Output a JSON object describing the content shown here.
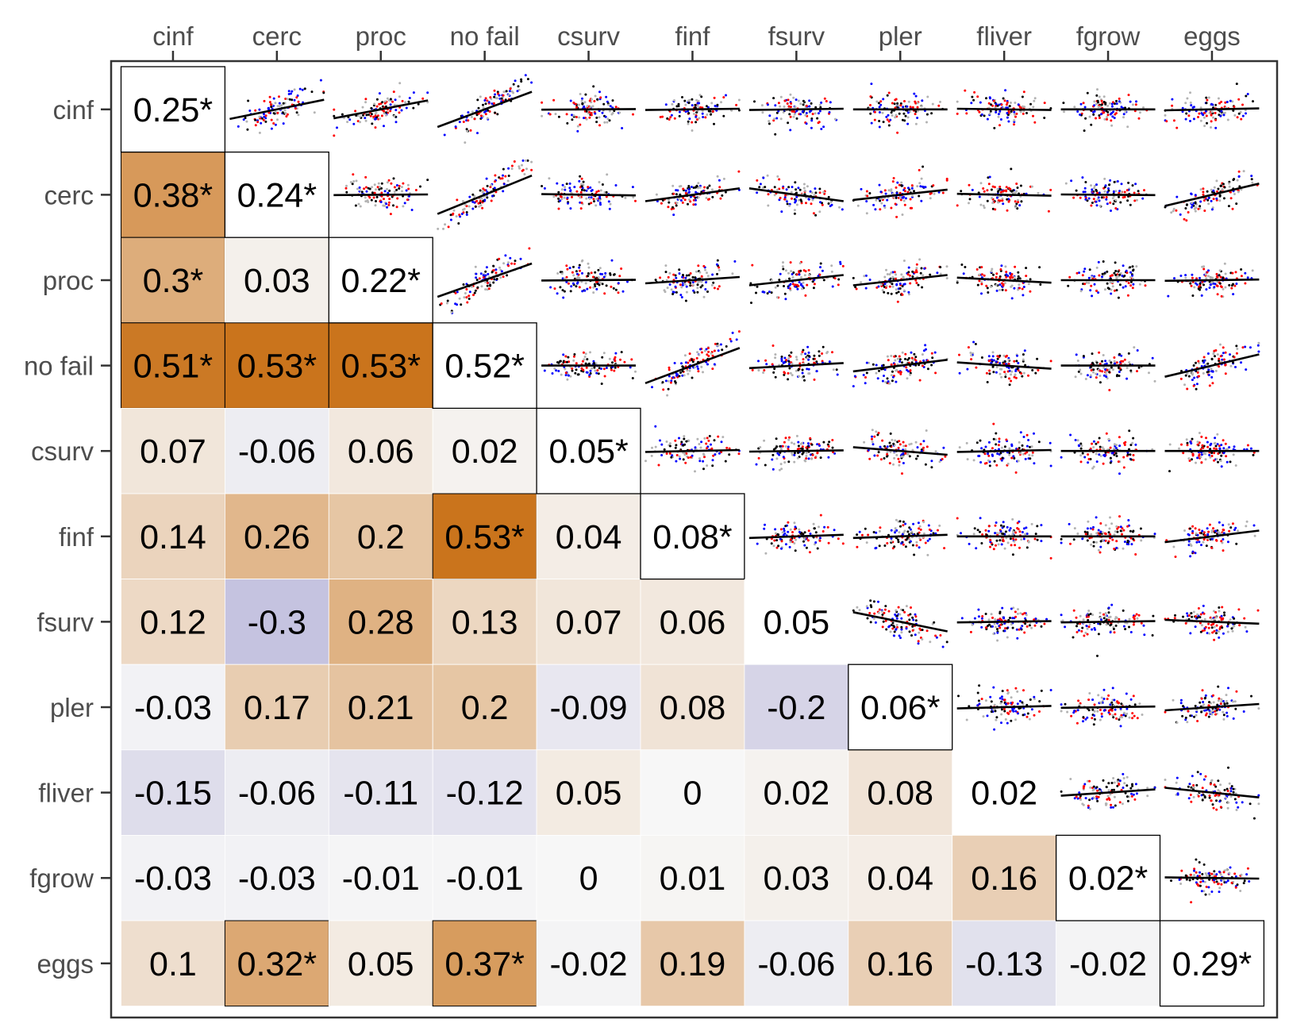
{
  "chart_data": {
    "type": "heatmap",
    "title": "",
    "variables": [
      "cinf",
      "cerc",
      "proc",
      "no fail",
      "csurv",
      "finf",
      "fsurv",
      "pler",
      "fliver",
      "fgrow",
      "eggs"
    ],
    "diagonal": [
      {
        "variable": "cinf",
        "label": "0.25*",
        "value": 0.25,
        "significant": true
      },
      {
        "variable": "cerc",
        "label": "0.24*",
        "value": 0.24,
        "significant": true
      },
      {
        "variable": "proc",
        "label": "0.22*",
        "value": 0.22,
        "significant": true
      },
      {
        "variable": "no fail",
        "label": "0.52*",
        "value": 0.52,
        "significant": true
      },
      {
        "variable": "csurv",
        "label": "0.05*",
        "value": 0.05,
        "significant": true
      },
      {
        "variable": "finf",
        "label": "0.08*",
        "value": 0.08,
        "significant": true
      },
      {
        "variable": "fsurv",
        "label": "0.05",
        "value": 0.05,
        "significant": false
      },
      {
        "variable": "pler",
        "label": "0.06*",
        "value": 0.06,
        "significant": true
      },
      {
        "variable": "fliver",
        "label": "0.02",
        "value": 0.02,
        "significant": false
      },
      {
        "variable": "fgrow",
        "label": "0.02*",
        "value": 0.02,
        "significant": true
      },
      {
        "variable": "eggs",
        "label": "0.29*",
        "value": 0.29,
        "significant": true
      }
    ],
    "lower_labels": [
      [],
      [
        "0.38*"
      ],
      [
        "0.3*",
        "0.03"
      ],
      [
        "0.51*",
        "0.53*",
        "0.53*"
      ],
      [
        "0.07",
        "-0.06",
        "0.06",
        "0.02"
      ],
      [
        "0.14",
        "0.26",
        "0.2",
        "0.53*",
        "0.04"
      ],
      [
        "0.12",
        "-0.3",
        "0.28",
        "0.13",
        "0.07",
        "0.06"
      ],
      [
        "-0.03",
        "0.17",
        "0.21",
        "0.2",
        "-0.09",
        "0.08",
        "-0.2"
      ],
      [
        "-0.15",
        "-0.06",
        "-0.11",
        "-0.12",
        "0.05",
        "0",
        "0.02",
        "0.08"
      ],
      [
        "-0.03",
        "-0.03",
        "-0.01",
        "-0.01",
        "0",
        "0.01",
        "0.03",
        "0.04",
        "0.16"
      ],
      [
        "0.1",
        "0.32*",
        "0.05",
        "0.37*",
        "-0.02",
        "0.19",
        "-0.06",
        "0.16",
        "-0.13",
        "-0.02"
      ]
    ],
    "upper_slopes": [
      [
        null,
        0.3,
        0.28,
        0.55,
        0.01,
        0.02,
        0.02,
        0.0,
        -0.02,
        0.0,
        0.03
      ],
      [
        null,
        null,
        0.01,
        0.6,
        -0.02,
        0.2,
        -0.2,
        0.16,
        -0.03,
        -0.01,
        0.35
      ],
      [
        null,
        null,
        null,
        0.52,
        0.01,
        0.1,
        0.16,
        0.16,
        -0.08,
        0.0,
        0.02
      ],
      [
        null,
        null,
        null,
        null,
        0.0,
        0.55,
        0.08,
        0.18,
        -0.1,
        0.0,
        0.35
      ],
      [
        null,
        null,
        null,
        null,
        null,
        0.03,
        0.02,
        -0.12,
        0.03,
        0.0,
        0.0
      ],
      [
        null,
        null,
        null,
        null,
        null,
        null,
        0.05,
        0.05,
        0.0,
        0.0,
        0.18
      ],
      [
        null,
        null,
        null,
        null,
        null,
        null,
        null,
        -0.3,
        0.02,
        0.02,
        -0.06
      ],
      [
        null,
        null,
        null,
        null,
        null,
        null,
        null,
        null,
        0.04,
        0.02,
        0.1
      ],
      [
        null,
        null,
        null,
        null,
        null,
        null,
        null,
        null,
        null,
        0.1,
        -0.15
      ],
      [
        null,
        null,
        null,
        null,
        null,
        null,
        null,
        null,
        null,
        null,
        -0.02
      ],
      [
        null,
        null,
        null,
        null,
        null,
        null,
        null,
        null,
        null,
        null,
        null
      ]
    ],
    "point_colors": [
      "#ff0000",
      "#0000ff",
      "#000000",
      "#b3b3b3"
    ],
    "color_scale": {
      "negative": "#9c98cc",
      "zero": "#f7f7f7",
      "positive": "#c86f14"
    },
    "color_limits": [
      -0.55,
      0.55
    ],
    "grid": false,
    "legend": "none"
  }
}
